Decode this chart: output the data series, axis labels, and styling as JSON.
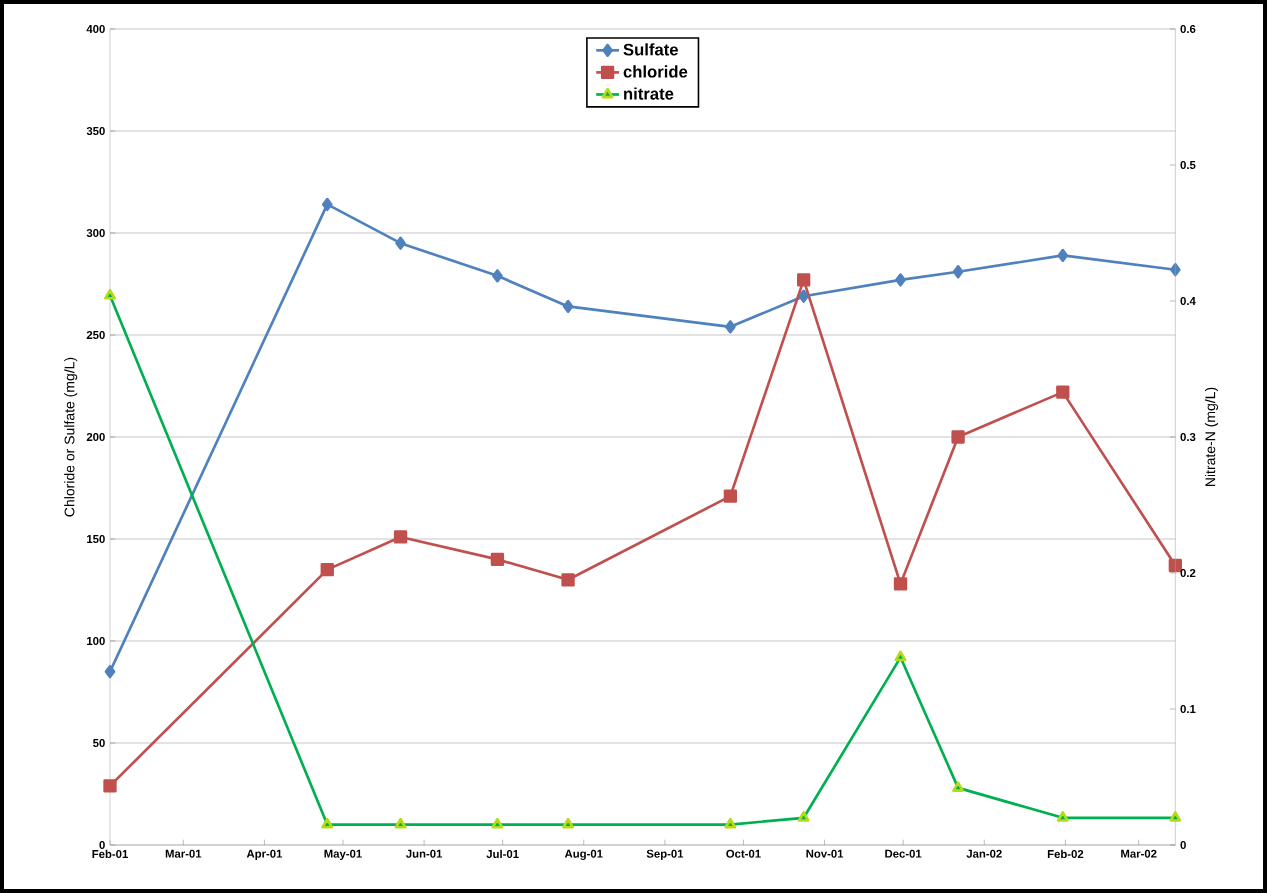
{
  "chart_data": {
    "type": "line",
    "ylabel": "Chloride or Sulfate (mg/L)",
    "y2label": "Nitrate-N (mg/L)",
    "x": [
      "2001-02-01",
      "2001-04-25",
      "2001-05-23",
      "2001-06-29",
      "2001-07-26",
      "2001-09-26",
      "2001-10-24",
      "2001-11-30",
      "2001-12-22",
      "2002-01-31",
      "2002-03-15"
    ],
    "series": [
      {
        "name": "Sulfate",
        "color": "#4f81bd",
        "marker": "diamond",
        "values": [
          85,
          314,
          295,
          279,
          264,
          254,
          269,
          277,
          281,
          289,
          282
        ]
      },
      {
        "name": "chloride",
        "color": "#c0504d",
        "marker": "square",
        "values": [
          29,
          135,
          151,
          140,
          130,
          171,
          277,
          128,
          200,
          222,
          137
        ]
      },
      {
        "name": "nitrate",
        "color": "#00b050",
        "marker": "triangle",
        "axis": "y2",
        "values": [
          0.404,
          0.015,
          0.015,
          0.015,
          0.015,
          0.015,
          0.02,
          0.138,
          0.042,
          0.02,
          0.02
        ]
      }
    ],
    "xlim": [
      "2001-02-01",
      "2002-03-15"
    ],
    "xticks": [
      {
        "value": "2001-02-01",
        "label": "Feb-01"
      },
      {
        "value": "2001-03-01",
        "label": "Mar-01"
      },
      {
        "value": "2001-04-01",
        "label": "Apr-01"
      },
      {
        "value": "2001-05-01",
        "label": "May-01"
      },
      {
        "value": "2001-06-01",
        "label": "Jun-01"
      },
      {
        "value": "2001-07-01",
        "label": "Jul-01"
      },
      {
        "value": "2001-08-01",
        "label": "Aug-01"
      },
      {
        "value": "2001-09-01",
        "label": "Sep-01"
      },
      {
        "value": "2001-10-01",
        "label": "Oct-01"
      },
      {
        "value": "2001-11-01",
        "label": "Nov-01"
      },
      {
        "value": "2001-12-01",
        "label": "Dec-01"
      },
      {
        "value": "2002-01-01",
        "label": "Jan-02"
      },
      {
        "value": "2002-02-01",
        "label": "Feb-02"
      },
      {
        "value": "2002-03-01",
        "label": "Mar-02"
      }
    ],
    "ylim": [
      0,
      400
    ],
    "yticks": [
      0,
      50,
      100,
      150,
      200,
      250,
      300,
      350,
      400
    ],
    "y2lim": [
      0,
      0.6
    ],
    "y2ticks": [
      0,
      0.1,
      0.2,
      0.3,
      0.4,
      0.5,
      0.6
    ],
    "grid": "y",
    "legend": "top"
  }
}
